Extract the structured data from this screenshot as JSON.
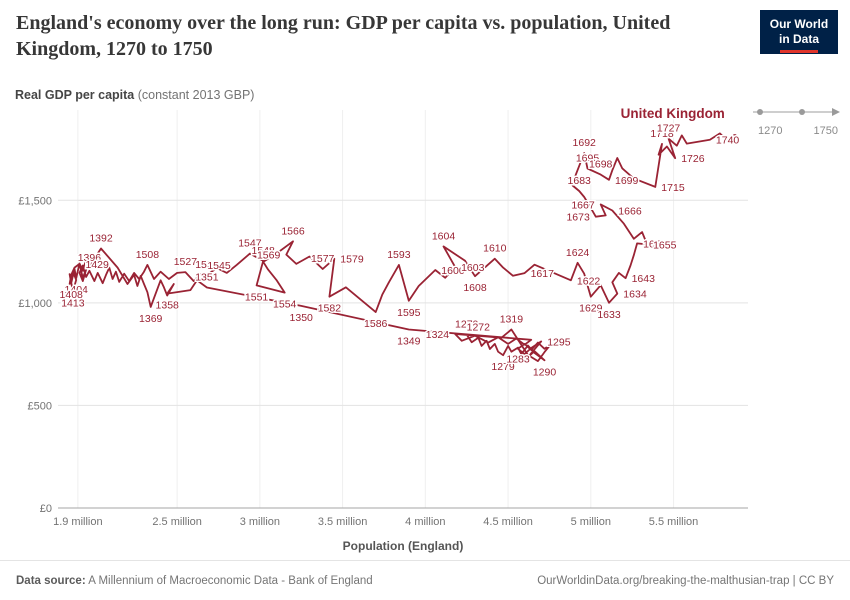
{
  "header": {
    "title": "England's economy over the long run: GDP per capita vs. population, United Kingdom, 1270 to 1750",
    "logo_line1": "Our World",
    "logo_line2": "in Data"
  },
  "timeline": {
    "start": "1270",
    "end": "1750"
  },
  "footer": {
    "datasource_label": "Data source:",
    "datasource_text": " A Millennium of Macroeconomic Data - Bank of England",
    "credit": "OurWorldinData.org/breaking-the-malthusian-trap | CC BY"
  },
  "chart_data": {
    "type": "connected-scatter",
    "title": "England's economy over the long run: GDP per capita vs. population, United Kingdom, 1270 to 1750",
    "ylabel_bold": "Real GDP per capita",
    "ylabel_light": " (constant 2013 GBP)",
    "xlabel": "Population (England)",
    "series_label": "United Kingdom",
    "color": "#9a2334",
    "grid": true,
    "xlim": [
      1.78,
      5.95
    ],
    "ylim": [
      0,
      1940
    ],
    "entity_label_pos": [
      5.18,
      1900
    ],
    "x_ticks": [
      {
        "value": 1.9,
        "label": "1.9 million"
      },
      {
        "value": 2.5,
        "label": "2.5 million"
      },
      {
        "value": 3,
        "label": "3 million"
      },
      {
        "value": 3.5,
        "label": "3.5 million"
      },
      {
        "value": 4,
        "label": "4 million"
      },
      {
        "value": 4.5,
        "label": "4.5 million"
      },
      {
        "value": 5,
        "label": "5 million"
      },
      {
        "value": 5.5,
        "label": "5.5 million"
      }
    ],
    "y_ticks": [
      {
        "value": 0,
        "label": "£0"
      },
      {
        "value": 500,
        "label": "£500"
      },
      {
        "value": 1000,
        "label": "£1,000"
      },
      {
        "value": 1500,
        "label": "£1,500"
      }
    ],
    "points_format": [
      "year",
      "population_millions",
      "gdp_per_capita_gbp",
      "label_position(a=above,b=below,l=left,r=right)"
    ],
    "points": [
      [
        1270,
        4.25,
        845,
        "a"
      ],
      [
        1271,
        4.28,
        808
      ],
      [
        1272,
        4.32,
        830,
        "a"
      ],
      [
        1273,
        4.34,
        790
      ],
      [
        1274,
        4.37,
        815
      ],
      [
        1275,
        4.39,
        775
      ],
      [
        1276,
        4.42,
        800
      ],
      [
        1277,
        4.44,
        762
      ],
      [
        1279,
        4.47,
        745,
        "b"
      ],
      [
        1280,
        4.5,
        790
      ],
      [
        1281,
        4.52,
        762
      ],
      [
        1283,
        4.56,
        782,
        "b"
      ],
      [
        1284,
        4.58,
        750
      ],
      [
        1286,
        4.62,
        792
      ],
      [
        1288,
        4.66,
        756
      ],
      [
        1290,
        4.72,
        720,
        "b"
      ],
      [
        1292,
        4.66,
        765
      ],
      [
        1293,
        4.62,
        735
      ],
      [
        1295,
        4.7,
        812,
        "r"
      ],
      [
        1297,
        4.64,
        780
      ],
      [
        1299,
        4.6,
        750
      ],
      [
        1300,
        4.56,
        776
      ],
      [
        1302,
        4.6,
        800
      ],
      [
        1304,
        4.64,
        770
      ],
      [
        1306,
        4.68,
        806
      ],
      [
        1308,
        4.72,
        776
      ],
      [
        1310,
        4.76,
        800
      ],
      [
        1312,
        4.72,
        760
      ],
      [
        1315,
        4.68,
        716
      ],
      [
        1317,
        4.62,
        746
      ],
      [
        1319,
        4.52,
        870,
        "a"
      ],
      [
        1321,
        4.46,
        830
      ],
      [
        1324,
        4.18,
        848,
        "l"
      ],
      [
        1326,
        4.22,
        815
      ],
      [
        1329,
        4.3,
        840
      ],
      [
        1332,
        4.38,
        806
      ],
      [
        1335,
        4.44,
        832
      ],
      [
        1338,
        4.5,
        800
      ],
      [
        1341,
        4.55,
        826
      ],
      [
        1344,
        4.6,
        796
      ],
      [
        1347,
        4.64,
        820
      ],
      [
        1349,
        3.9,
        870,
        "b"
      ],
      [
        1350,
        3.25,
        985,
        "b"
      ],
      [
        1351,
        2.68,
        1075,
        "a"
      ],
      [
        1353,
        2.62,
        1110
      ],
      [
        1355,
        2.58,
        1062
      ],
      [
        1358,
        2.44,
        1045,
        "b"
      ],
      [
        1360,
        2.48,
        1092
      ],
      [
        1362,
        2.44,
        1036
      ],
      [
        1364,
        2.42,
        1076
      ],
      [
        1366,
        2.4,
        1110
      ],
      [
        1369,
        2.34,
        980,
        "b"
      ],
      [
        1371,
        2.32,
        1052
      ],
      [
        1374,
        2.3,
        1092
      ],
      [
        1377,
        2.28,
        1132
      ],
      [
        1380,
        2.26,
        1082
      ],
      [
        1383,
        2.24,
        1136
      ],
      [
        1386,
        2.2,
        1092
      ],
      [
        1389,
        2.14,
        1172
      ],
      [
        1392,
        2.04,
        1265,
        "a"
      ],
      [
        1394,
        2.0,
        1216
      ],
      [
        1396,
        1.97,
        1170,
        "a"
      ],
      [
        1398,
        1.95,
        1210
      ],
      [
        1400,
        1.93,
        1156
      ],
      [
        1402,
        1.91,
        1192
      ],
      [
        1404,
        1.89,
        1120,
        "b"
      ],
      [
        1406,
        1.88,
        1166
      ],
      [
        1408,
        1.86,
        1096,
        "b"
      ],
      [
        1410,
        1.85,
        1140
      ],
      [
        1413,
        1.87,
        1055,
        "b"
      ],
      [
        1415,
        1.89,
        1112
      ],
      [
        1418,
        1.87,
        1152
      ],
      [
        1421,
        1.85,
        1092
      ],
      [
        1424,
        1.86,
        1136
      ],
      [
        1426,
        1.88,
        1172
      ],
      [
        1429,
        1.91,
        1190,
        "r"
      ],
      [
        1432,
        1.93,
        1122
      ],
      [
        1435,
        1.95,
        1162
      ],
      [
        1438,
        1.93,
        1106
      ],
      [
        1441,
        1.91,
        1146
      ],
      [
        1444,
        1.93,
        1182
      ],
      [
        1447,
        1.95,
        1126
      ],
      [
        1450,
        1.97,
        1156
      ],
      [
        1454,
        2.0,
        1106
      ],
      [
        1458,
        2.02,
        1146
      ],
      [
        1462,
        2.05,
        1096
      ],
      [
        1466,
        2.07,
        1136
      ],
      [
        1470,
        2.09,
        1172
      ],
      [
        1474,
        2.11,
        1116
      ],
      [
        1478,
        2.13,
        1152
      ],
      [
        1482,
        2.15,
        1102
      ],
      [
        1486,
        2.18,
        1142
      ],
      [
        1490,
        2.21,
        1106
      ],
      [
        1494,
        2.24,
        1146
      ],
      [
        1498,
        2.27,
        1116
      ],
      [
        1502,
        2.3,
        1152
      ],
      [
        1508,
        2.32,
        1185,
        "a"
      ],
      [
        1512,
        2.36,
        1116
      ],
      [
        1516,
        2.4,
        1152
      ],
      [
        1520,
        2.45,
        1116
      ],
      [
        1524,
        2.5,
        1146
      ],
      [
        1527,
        2.55,
        1150,
        "a"
      ],
      [
        1530,
        2.6,
        1106
      ],
      [
        1534,
        2.64,
        1140
      ],
      [
        1537,
        2.68,
        1135,
        "a"
      ],
      [
        1540,
        2.74,
        1170
      ],
      [
        1543,
        2.8,
        1146
      ],
      [
        1545,
        2.86,
        1185,
        "l"
      ],
      [
        1547,
        2.94,
        1240,
        "a"
      ],
      [
        1548,
        3.02,
        1205,
        "a"
      ],
      [
        1551,
        2.98,
        1085,
        "b"
      ],
      [
        1554,
        3.15,
        1050,
        "b"
      ],
      [
        1556,
        3.1,
        1112
      ],
      [
        1558,
        3.05,
        1162
      ],
      [
        1560,
        3.02,
        1200
      ],
      [
        1563,
        3.1,
        1240
      ],
      [
        1566,
        3.2,
        1300,
        "a"
      ],
      [
        1569,
        3.16,
        1235,
        "l"
      ],
      [
        1571,
        3.22,
        1190
      ],
      [
        1574,
        3.3,
        1226
      ],
      [
        1577,
        3.38,
        1165,
        "a"
      ],
      [
        1579,
        3.45,
        1215,
        "r"
      ],
      [
        1582,
        3.42,
        1030,
        "b"
      ],
      [
        1584,
        3.52,
        1076
      ],
      [
        1586,
        3.7,
        955,
        "b"
      ],
      [
        1588,
        3.74,
        1040
      ],
      [
        1590,
        3.78,
        1100
      ],
      [
        1593,
        3.84,
        1185,
        "a"
      ],
      [
        1595,
        3.9,
        1010,
        "b"
      ],
      [
        1597,
        3.96,
        1082
      ],
      [
        1600,
        4.06,
        1160,
        "r"
      ],
      [
        1602,
        4.12,
        1122
      ],
      [
        1603,
        4.18,
        1175,
        "r"
      ],
      [
        1604,
        4.11,
        1275,
        "a"
      ],
      [
        1606,
        4.24,
        1205
      ],
      [
        1608,
        4.3,
        1130,
        "b"
      ],
      [
        1610,
        4.42,
        1215,
        "a"
      ],
      [
        1612,
        4.47,
        1172
      ],
      [
        1615,
        4.53,
        1132
      ],
      [
        1617,
        4.6,
        1145,
        "r"
      ],
      [
        1619,
        4.66,
        1186
      ],
      [
        1622,
        4.88,
        1110,
        "r"
      ],
      [
        1624,
        4.92,
        1195,
        "a"
      ],
      [
        1626,
        4.96,
        1142
      ],
      [
        1629,
        5.0,
        1030,
        "b"
      ],
      [
        1631,
        5.06,
        1086
      ],
      [
        1633,
        5.11,
        1000,
        "b"
      ],
      [
        1634,
        5.16,
        1045,
        "r"
      ],
      [
        1636,
        5.13,
        1100
      ],
      [
        1639,
        5.17,
        1146
      ],
      [
        1643,
        5.21,
        1120,
        "r"
      ],
      [
        1646,
        5.24,
        1182
      ],
      [
        1649,
        5.26,
        1232
      ],
      [
        1653,
        5.28,
        1290,
        "r"
      ],
      [
        1655,
        5.34,
        1285,
        "r"
      ],
      [
        1657,
        5.31,
        1345
      ],
      [
        1660,
        5.26,
        1312
      ],
      [
        1663,
        5.2,
        1386
      ],
      [
        1666,
        5.13,
        1450,
        "r"
      ],
      [
        1667,
        5.06,
        1480,
        "l"
      ],
      [
        1669,
        5.09,
        1426
      ],
      [
        1673,
        5.03,
        1420,
        "l"
      ],
      [
        1676,
        4.99,
        1476
      ],
      [
        1679,
        4.96,
        1516
      ],
      [
        1683,
        4.93,
        1545,
        "a"
      ],
      [
        1686,
        4.89,
        1572
      ],
      [
        1689,
        4.91,
        1626
      ],
      [
        1692,
        4.96,
        1730,
        "a"
      ],
      [
        1695,
        4.98,
        1655,
        "a"
      ],
      [
        1698,
        5.06,
        1625,
        "a"
      ],
      [
        1699,
        5.11,
        1600,
        "r"
      ],
      [
        1702,
        5.13,
        1646
      ],
      [
        1705,
        5.16,
        1706
      ],
      [
        1708,
        5.19,
        1656
      ],
      [
        1711,
        5.26,
        1606
      ],
      [
        1715,
        5.39,
        1565,
        "r"
      ],
      [
        1718,
        5.43,
        1775,
        "a"
      ],
      [
        1721,
        5.41,
        1722
      ],
      [
        1724,
        5.46,
        1762
      ],
      [
        1726,
        5.51,
        1705,
        "r"
      ],
      [
        1727,
        5.47,
        1800,
        "a"
      ],
      [
        1730,
        5.52,
        1766
      ],
      [
        1733,
        5.55,
        1816
      ],
      [
        1736,
        5.58,
        1776
      ],
      [
        1740,
        5.72,
        1795,
        "r"
      ],
      [
        1743,
        5.78,
        1826
      ],
      [
        1746,
        5.83,
        1786
      ],
      [
        1750,
        5.87,
        1810
      ]
    ]
  }
}
